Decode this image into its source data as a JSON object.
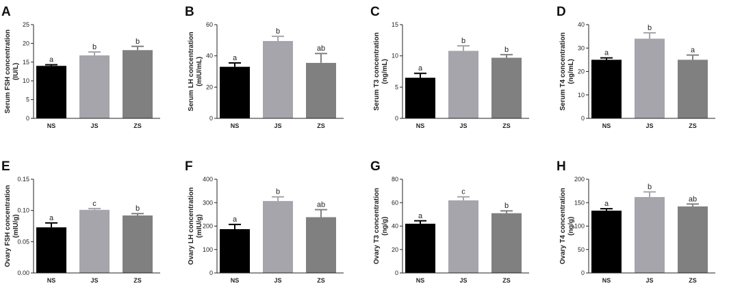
{
  "colors": {
    "NS": "#000000",
    "JS": "#a6a5ab",
    "ZS": "#808080",
    "axis": "#222222"
  },
  "chart_data": [
    {
      "id": "A",
      "type": "bar",
      "ylabel_lines": [
        "Serum FSH concentration",
        "(IU/L)"
      ],
      "categories": [
        "NS",
        "JS",
        "ZS"
      ],
      "values": [
        14,
        16.8,
        18.2
      ],
      "errors": [
        0.3,
        0.9,
        1.0
      ],
      "letters": [
        "a",
        "b",
        "b"
      ],
      "ylim": [
        0,
        25
      ],
      "yticks": [
        0,
        5,
        10,
        15,
        20,
        25
      ],
      "ytick_labels": [
        "0",
        "5",
        "10",
        "15",
        "20",
        "25"
      ]
    },
    {
      "id": "B",
      "type": "bar",
      "ylabel_lines": [
        "Serum LH concentration",
        "(mIU/mL)"
      ],
      "categories": [
        "NS",
        "JS",
        "ZS"
      ],
      "values": [
        33,
        49.5,
        35.5
      ],
      "errors": [
        2.5,
        3,
        6
      ],
      "letters": [
        "a",
        "b",
        "ab"
      ],
      "ylim": [
        0,
        60
      ],
      "yticks": [
        0,
        20,
        40,
        60
      ],
      "ytick_labels": [
        "0",
        "20",
        "40",
        "60"
      ]
    },
    {
      "id": "C",
      "type": "bar",
      "ylabel_lines": [
        "Serum T3 concentration",
        "(ng/mL)"
      ],
      "categories": [
        "NS",
        "JS",
        "ZS"
      ],
      "values": [
        6.5,
        10.8,
        9.7
      ],
      "errors": [
        0.7,
        0.8,
        0.5
      ],
      "letters": [
        "a",
        "b",
        "b"
      ],
      "ylim": [
        0,
        15
      ],
      "yticks": [
        0,
        5,
        10,
        15
      ],
      "ytick_labels": [
        "0",
        "5",
        "10",
        "15"
      ]
    },
    {
      "id": "D",
      "type": "bar",
      "ylabel_lines": [
        "Serum T4 concentration",
        "(ng/mL)"
      ],
      "categories": [
        "NS",
        "JS",
        "ZS"
      ],
      "values": [
        25,
        34,
        25
      ],
      "errors": [
        0.8,
        2.5,
        2
      ],
      "letters": [
        "a",
        "b",
        "a"
      ],
      "ylim": [
        0,
        40
      ],
      "yticks": [
        0,
        10,
        20,
        30,
        40
      ],
      "ytick_labels": [
        "0",
        "10",
        "20",
        "30",
        "40"
      ]
    },
    {
      "id": "E",
      "type": "bar",
      "ylabel_lines": [
        "Ovary FSH concentration",
        "(mIU/g)"
      ],
      "categories": [
        "NS",
        "JS",
        "ZS"
      ],
      "values": [
        0.073,
        0.101,
        0.092
      ],
      "errors": [
        0.007,
        0.002,
        0.003
      ],
      "letters": [
        "a",
        "c",
        "b"
      ],
      "ylim": [
        0,
        0.15
      ],
      "yticks": [
        0,
        0.05,
        0.1,
        0.15
      ],
      "ytick_labels": [
        "0.00",
        "0.05",
        "0.10",
        "0.15"
      ]
    },
    {
      "id": "F",
      "type": "bar",
      "ylabel_lines": [
        "Ovary LH concentration",
        "(mIU/g)"
      ],
      "categories": [
        "NS",
        "JS",
        "ZS"
      ],
      "values": [
        187,
        307,
        238
      ],
      "errors": [
        20,
        18,
        32
      ],
      "letters": [
        "a",
        "b",
        "ab"
      ],
      "ylim": [
        0,
        400
      ],
      "yticks": [
        0,
        100,
        200,
        300,
        400
      ],
      "ytick_labels": [
        "0",
        "100",
        "200",
        "300",
        "400"
      ]
    },
    {
      "id": "G",
      "type": "bar",
      "ylabel_lines": [
        "Ovary T3 concentration",
        "(ng/g)"
      ],
      "categories": [
        "NS",
        "JS",
        "ZS"
      ],
      "values": [
        42,
        62,
        51
      ],
      "errors": [
        2.5,
        3,
        2
      ],
      "letters": [
        "a",
        "c",
        "b"
      ],
      "ylim": [
        0,
        80
      ],
      "yticks": [
        0,
        20,
        40,
        60,
        80
      ],
      "ytick_labels": [
        "0",
        "20",
        "40",
        "60",
        "80"
      ]
    },
    {
      "id": "H",
      "type": "bar",
      "ylabel_lines": [
        "Ovary T4 concentration",
        "(ng/g)"
      ],
      "categories": [
        "NS",
        "JS",
        "ZS"
      ],
      "values": [
        133,
        162,
        142
      ],
      "errors": [
        4,
        11,
        5
      ],
      "letters": [
        "a",
        "b",
        "ab"
      ],
      "ylim": [
        0,
        200
      ],
      "yticks": [
        0,
        50,
        100,
        150,
        200
      ],
      "ytick_labels": [
        "0",
        "50",
        "100",
        "150",
        "200"
      ]
    }
  ]
}
